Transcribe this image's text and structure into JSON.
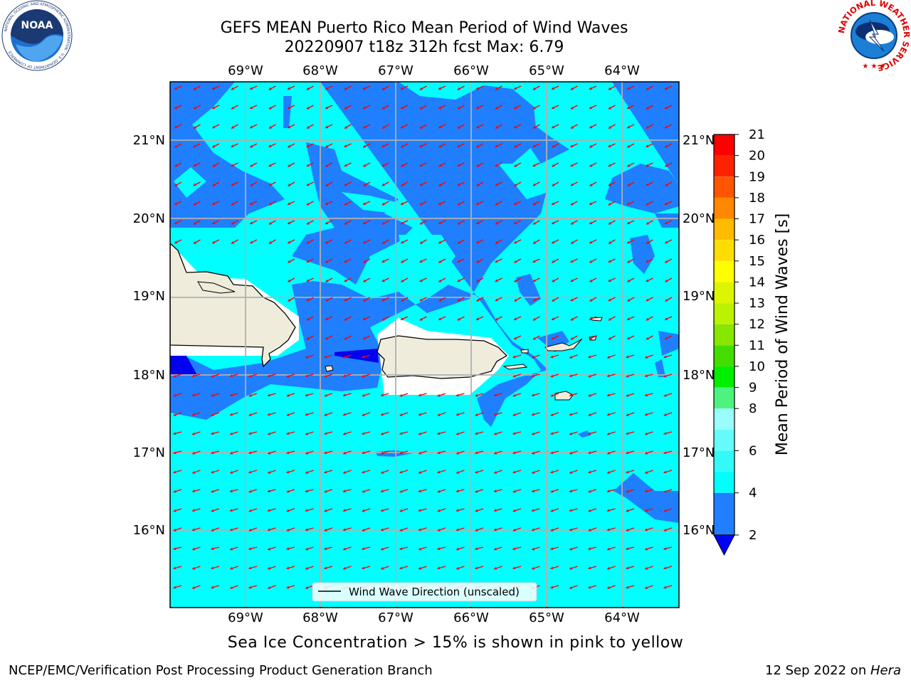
{
  "header": {
    "title_line1": "GEFS MEAN Puerto Rico Mean Period of Wind Waves",
    "title_line2": "20220907 t18z 312h fcst   Max: 6.79"
  },
  "map": {
    "lon_labels": [
      "69°W",
      "68°W",
      "67°W",
      "66°W",
      "65°W",
      "64°W"
    ],
    "lat_labels": [
      "21°N",
      "20°N",
      "19°N",
      "18°N",
      "17°N",
      "16°N"
    ],
    "legend_label": "Wind Wave Direction (unscaled)",
    "colors": {
      "ocean_high": "#00ffff",
      "ocean_low": "#1f7fff",
      "land": "#efecdc",
      "arrow": "#ff0000",
      "deep": "#0000ee"
    }
  },
  "colorbar": {
    "label": "Mean Period of Wind Waves [s]",
    "ticks": [
      "2",
      "4",
      "6",
      "8",
      "9",
      "10",
      "11",
      "12",
      "13",
      "14",
      "15",
      "16",
      "17",
      "18",
      "19",
      "20",
      "21"
    ],
    "colors": [
      "#1f7fff",
      "#00ffff",
      "#33f9f9",
      "#66fbfb",
      "#99fdfd",
      "#4df27f",
      "#00ee00",
      "#44dd00",
      "#88e600",
      "#bbf200",
      "#ddf500",
      "#ffff00",
      "#ffdd00",
      "#ffbb00",
      "#ff8800",
      "#ff5500",
      "#ff2200",
      "#ff0000"
    ],
    "under_color": "#0000ff"
  },
  "note": "Sea Ice Concentration > 15% is shown in pink to yellow",
  "footer": {
    "left": "NCEP/EMC/Verification Post Processing Product Generation Branch",
    "date": "12 Sep 2022 on ",
    "host": "Hera"
  },
  "logos": {
    "noaa_text": "NOAA",
    "noaa_ring": "NATIONAL OCEANIC AND ATMOSPHERIC ADMINISTRATION · U.S. DEPARTMENT OF COMMERCE",
    "nws_ring": "NATIONAL WEATHER SERVICE"
  }
}
